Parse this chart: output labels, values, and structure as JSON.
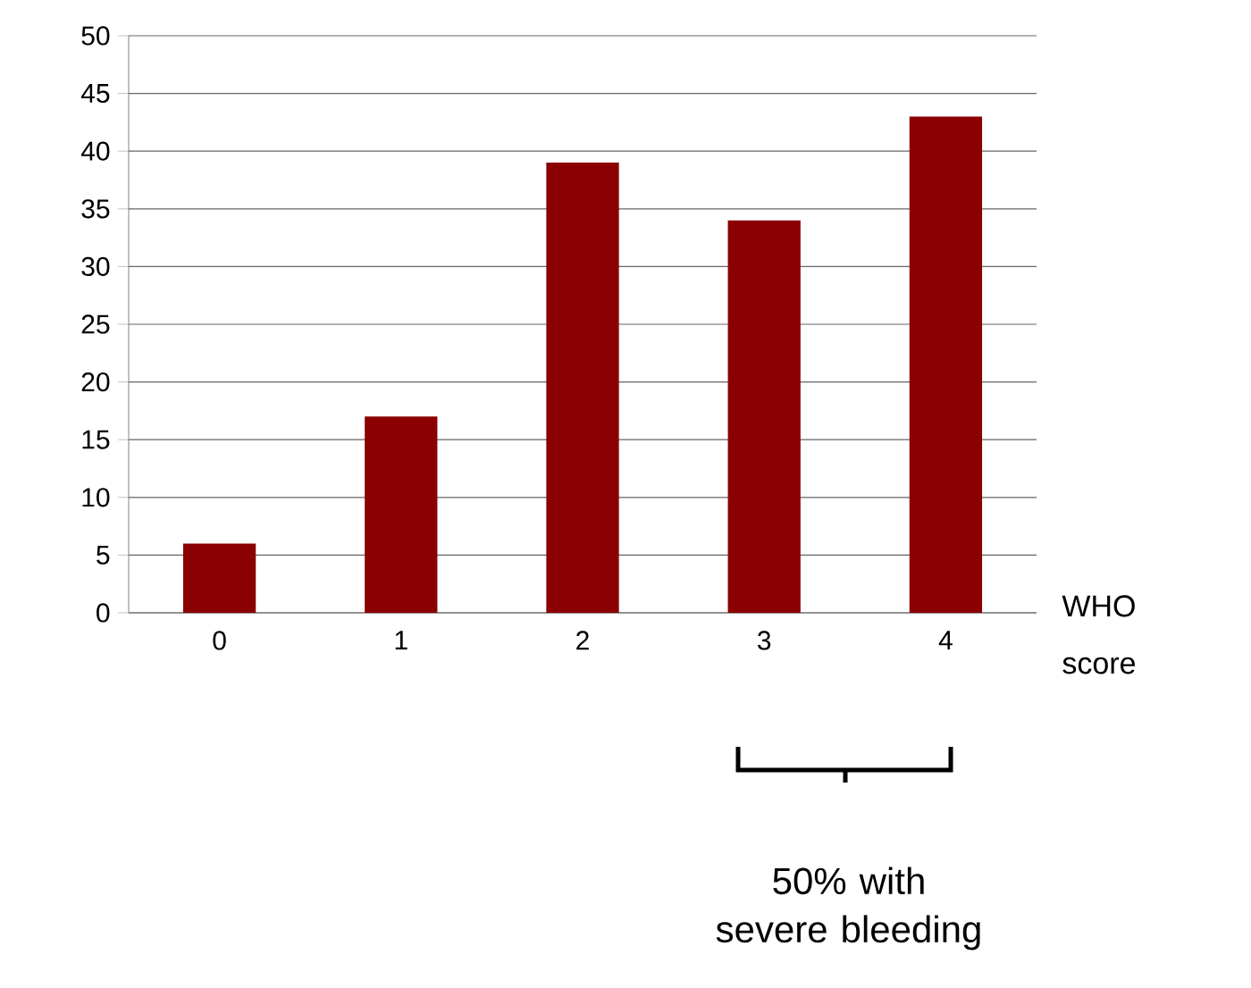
{
  "chart_data": {
    "type": "bar",
    "categories": [
      "0",
      "1",
      "2",
      "3",
      "4"
    ],
    "values": [
      6,
      17,
      39,
      34,
      43
    ],
    "color": "#8b0000",
    "ylim": [
      0,
      50
    ],
    "yticks": [
      0,
      5,
      10,
      15,
      20,
      25,
      30,
      35,
      40,
      45,
      50
    ],
    "grid": "y",
    "xlabel": "WHO score",
    "annotations": [
      "50% with severe bleeding"
    ]
  }
}
